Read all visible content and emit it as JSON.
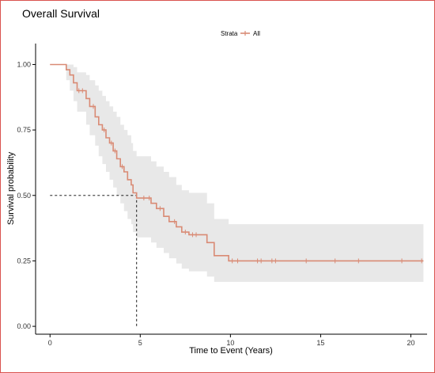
{
  "chart_data": {
    "type": "line",
    "title": "Overall Survival",
    "xlabel": "Time to Event (Years)",
    "ylabel": "Survival probability",
    "xlim": [
      -0.8,
      20.9
    ],
    "ylim": [
      -0.03,
      1.08
    ],
    "xticks": [
      0,
      5,
      10,
      15,
      20
    ],
    "xtick_labels": [
      "0",
      "5",
      "10",
      "15",
      "20"
    ],
    "yticks": [
      0.0,
      0.25,
      0.5,
      0.75,
      1.0
    ],
    "ytick_labels": [
      "0.00",
      "0.25",
      "0.50",
      "0.75",
      "1.00"
    ],
    "grid": false,
    "legend": {
      "title": "Strata",
      "position": "top",
      "entries": [
        "All"
      ]
    },
    "colors": {
      "curve": "#d98a74",
      "band": "#e8e8e8",
      "median": "#000000"
    },
    "series": [
      {
        "name": "All",
        "step": [
          [
            0,
            1.0
          ],
          [
            0.9,
            0.98
          ],
          [
            1.1,
            0.96
          ],
          [
            1.3,
            0.93
          ],
          [
            1.5,
            0.9
          ],
          [
            2.0,
            0.87
          ],
          [
            2.2,
            0.84
          ],
          [
            2.5,
            0.8
          ],
          [
            2.7,
            0.77
          ],
          [
            2.9,
            0.75
          ],
          [
            3.1,
            0.72
          ],
          [
            3.3,
            0.7
          ],
          [
            3.5,
            0.67
          ],
          [
            3.7,
            0.64
          ],
          [
            3.9,
            0.61
          ],
          [
            4.1,
            0.59
          ],
          [
            4.3,
            0.56
          ],
          [
            4.5,
            0.54
          ],
          [
            4.6,
            0.51
          ],
          [
            4.8,
            0.49
          ],
          [
            5.6,
            0.47
          ],
          [
            5.9,
            0.45
          ],
          [
            6.3,
            0.42
          ],
          [
            6.6,
            0.4
          ],
          [
            7.0,
            0.38
          ],
          [
            7.3,
            0.36
          ],
          [
            7.7,
            0.35
          ],
          [
            8.7,
            0.32
          ],
          [
            9.1,
            0.27
          ],
          [
            9.9,
            0.25
          ],
          [
            20.7,
            0.25
          ]
        ],
        "lower": [
          [
            0,
            1.0
          ],
          [
            0.9,
            0.94
          ],
          [
            1.1,
            0.9
          ],
          [
            1.3,
            0.86
          ],
          [
            1.5,
            0.82
          ],
          [
            2.0,
            0.77
          ],
          [
            2.2,
            0.73
          ],
          [
            2.5,
            0.69
          ],
          [
            2.7,
            0.65
          ],
          [
            2.9,
            0.62
          ],
          [
            3.1,
            0.59
          ],
          [
            3.3,
            0.56
          ],
          [
            3.5,
            0.53
          ],
          [
            3.7,
            0.5
          ],
          [
            3.9,
            0.47
          ],
          [
            4.1,
            0.44
          ],
          [
            4.3,
            0.41
          ],
          [
            4.5,
            0.39
          ],
          [
            4.6,
            0.36
          ],
          [
            4.8,
            0.34
          ],
          [
            5.6,
            0.32
          ],
          [
            5.9,
            0.3
          ],
          [
            6.3,
            0.28
          ],
          [
            6.6,
            0.26
          ],
          [
            7.0,
            0.24
          ],
          [
            7.3,
            0.22
          ],
          [
            7.7,
            0.21
          ],
          [
            8.7,
            0.19
          ],
          [
            9.1,
            0.17
          ],
          [
            20.7,
            0.17
          ]
        ],
        "upper": [
          [
            0,
            1.0
          ],
          [
            0.9,
            1.0
          ],
          [
            1.3,
            0.99
          ],
          [
            1.5,
            0.97
          ],
          [
            2.0,
            0.96
          ],
          [
            2.2,
            0.94
          ],
          [
            2.5,
            0.92
          ],
          [
            2.7,
            0.9
          ],
          [
            2.9,
            0.88
          ],
          [
            3.1,
            0.86
          ],
          [
            3.3,
            0.84
          ],
          [
            3.5,
            0.82
          ],
          [
            3.7,
            0.8
          ],
          [
            3.9,
            0.77
          ],
          [
            4.1,
            0.75
          ],
          [
            4.3,
            0.73
          ],
          [
            4.5,
            0.7
          ],
          [
            4.6,
            0.67
          ],
          [
            4.8,
            0.65
          ],
          [
            5.6,
            0.63
          ],
          [
            5.9,
            0.61
          ],
          [
            6.3,
            0.59
          ],
          [
            6.6,
            0.57
          ],
          [
            7.0,
            0.54
          ],
          [
            7.3,
            0.52
          ],
          [
            7.7,
            0.51
          ],
          [
            8.7,
            0.47
          ],
          [
            9.1,
            0.41
          ],
          [
            9.9,
            0.39
          ],
          [
            20.7,
            0.39
          ]
        ],
        "censored": [
          [
            1.6,
            0.9
          ],
          [
            1.8,
            0.9
          ],
          [
            2.4,
            0.84
          ],
          [
            3.0,
            0.75
          ],
          [
            3.4,
            0.7
          ],
          [
            3.6,
            0.67
          ],
          [
            4.0,
            0.61
          ],
          [
            5.2,
            0.49
          ],
          [
            5.5,
            0.49
          ],
          [
            6.1,
            0.45
          ],
          [
            6.9,
            0.4
          ],
          [
            7.5,
            0.36
          ],
          [
            7.9,
            0.35
          ],
          [
            8.1,
            0.35
          ],
          [
            10.1,
            0.25
          ],
          [
            10.4,
            0.25
          ],
          [
            11.5,
            0.25
          ],
          [
            11.7,
            0.25
          ],
          [
            12.3,
            0.25
          ],
          [
            12.5,
            0.25
          ],
          [
            14.2,
            0.25
          ],
          [
            15.8,
            0.25
          ],
          [
            17.1,
            0.25
          ],
          [
            19.5,
            0.25
          ],
          [
            20.6,
            0.25
          ]
        ]
      }
    ],
    "median": {
      "time": 4.8,
      "survival": 0.5
    }
  }
}
